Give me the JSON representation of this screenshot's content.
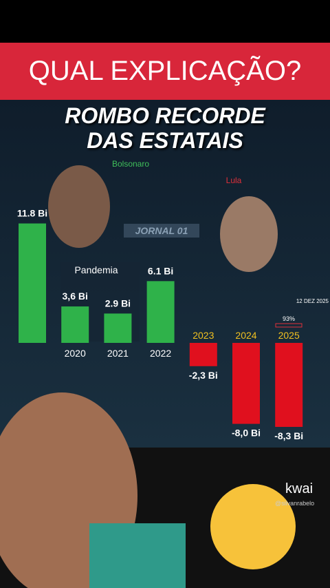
{
  "banner": "QUAL EXPLICAÇÃO?",
  "chart_data": {
    "type": "bar",
    "title": "ROMBO RECORDE DAS ESTATAIS",
    "categories": [
      null,
      "2020",
      "2021",
      "2022",
      "2023",
      "2024",
      "2025"
    ],
    "series": [
      {
        "name": "Bolsonaro",
        "color": "#2fb24a",
        "values": [
          11.8,
          3.6,
          2.9,
          6.1,
          null,
          null,
          null
        ],
        "value_labels": [
          "11.8 Bi",
          "3,6 Bi",
          "2.9 Bi",
          "6.1 Bi",
          null,
          null,
          null
        ]
      },
      {
        "name": "Lula",
        "color": "#e0101e",
        "values": [
          null,
          null,
          null,
          null,
          -2.3,
          -8.0,
          -8.3
        ],
        "value_labels": [
          null,
          null,
          null,
          null,
          "-2,3 Bi",
          "-8,0 Bi",
          "-8,3 Bi"
        ]
      }
    ],
    "annotations": [
      "Pandemia",
      "93%"
    ]
  },
  "watermark": "JORNAL 01",
  "date": "12 DEZ 2025",
  "app": {
    "name": "kwai",
    "user": "@silvanrabelo"
  }
}
